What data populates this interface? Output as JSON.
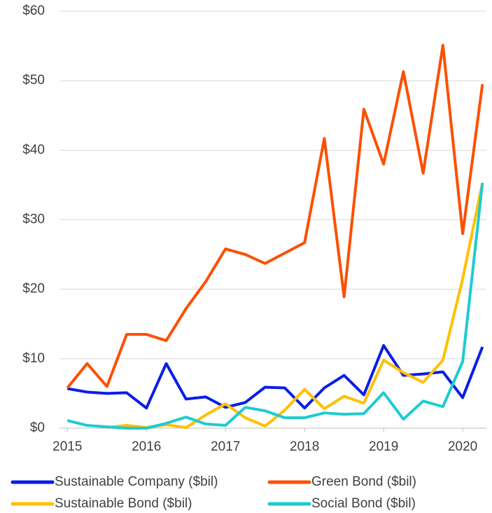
{
  "chart_data": {
    "type": "line",
    "x": [
      2015,
      2015.25,
      2015.5,
      2015.75,
      2016,
      2016.25,
      2016.5,
      2016.75,
      2017,
      2017.25,
      2017.5,
      2017.75,
      2018,
      2018.25,
      2018.5,
      2018.75,
      2019,
      2019.25,
      2019.5,
      2019.75,
      2020,
      2020.25
    ],
    "series": [
      {
        "name": "Sustainable Company ($bil)",
        "color": "#0a1ee6",
        "values": [
          5.7,
          5.2,
          5.0,
          5.1,
          2.9,
          9.3,
          4.2,
          4.5,
          3.0,
          3.7,
          5.9,
          5.8,
          2.9,
          5.8,
          7.6,
          4.8,
          11.9,
          7.6,
          7.8,
          8.1,
          4.4,
          11.7
        ]
      },
      {
        "name": "Green Bond ($bil)",
        "color": "#fc5000",
        "values": [
          5.8,
          9.3,
          6.0,
          13.5,
          13.5,
          12.6,
          17.2,
          21.1,
          25.8,
          25.0,
          23.7,
          25.2,
          26.7,
          41.7,
          18.9,
          45.9,
          38.0,
          51.3,
          36.7,
          55.1,
          28.0,
          49.5
        ]
      },
      {
        "name": "Sustainable Bond ($bil)",
        "color": "#ffc000",
        "values": [
          null,
          null,
          0.1,
          0.4,
          0.1,
          0.5,
          0.1,
          1.9,
          3.5,
          1.5,
          0.3,
          2.6,
          5.6,
          2.8,
          4.6,
          3.6,
          9.8,
          8.0,
          6.6,
          9.8,
          21.5,
          35.3
        ]
      },
      {
        "name": "Social Bond ($bil)",
        "color": "#1ecbd1",
        "values": [
          1.1,
          0.4,
          0.2,
          0.0,
          0.0,
          0.7,
          1.6,
          0.6,
          0.4,
          3.0,
          2.5,
          1.5,
          1.5,
          2.2,
          2.0,
          2.1,
          5.1,
          1.3,
          3.9,
          3.1,
          9.6,
          35.3
        ]
      }
    ],
    "xlim": [
      2014.9,
      2020.3
    ],
    "xticks": [
      2015,
      2016,
      2017,
      2018,
      2019,
      2020
    ],
    "ylim": [
      0,
      60
    ],
    "yticks": [
      {
        "value": 0,
        "label": "$0"
      },
      {
        "value": 10,
        "label": "$10"
      },
      {
        "value": 20,
        "label": "$20"
      },
      {
        "value": 30,
        "label": "$30"
      },
      {
        "value": 40,
        "label": "$40"
      },
      {
        "value": 50,
        "label": "$50"
      },
      {
        "value": 60,
        "label": "$60"
      }
    ],
    "grid": true,
    "legend": "bottom"
  }
}
